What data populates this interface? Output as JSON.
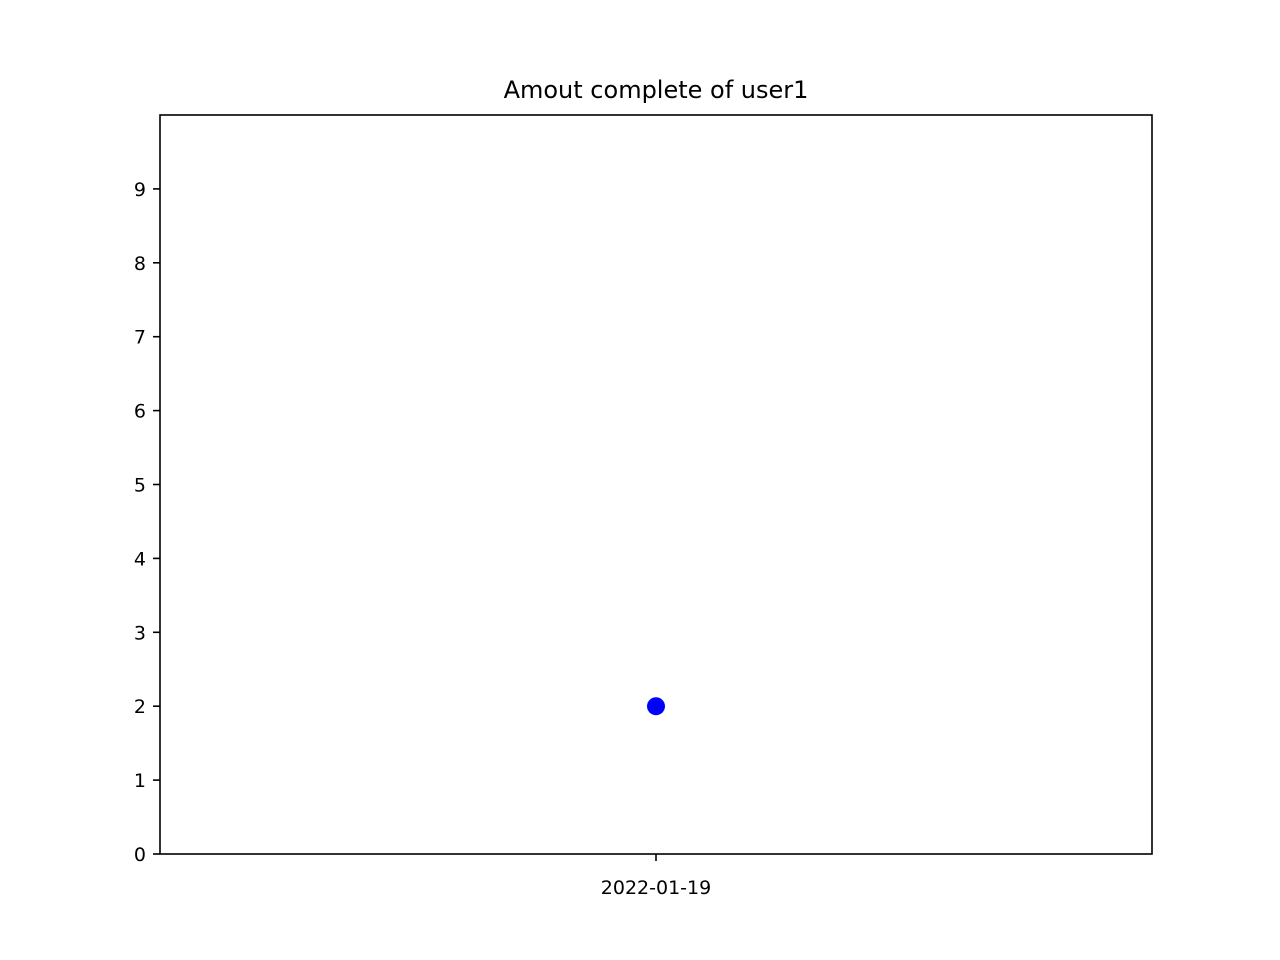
{
  "chart_data": {
    "type": "scatter",
    "title": "Amout complete of user1",
    "xlabel": "",
    "ylabel": "",
    "x_categories": [
      "2022-01-19"
    ],
    "points": [
      {
        "x": "2022-01-19",
        "y": 2
      }
    ],
    "ylim": [
      0,
      10
    ],
    "yticks": [
      0,
      1,
      2,
      3,
      4,
      5,
      6,
      7,
      8,
      9
    ],
    "grid": false,
    "marker_color": "#0000ff"
  }
}
